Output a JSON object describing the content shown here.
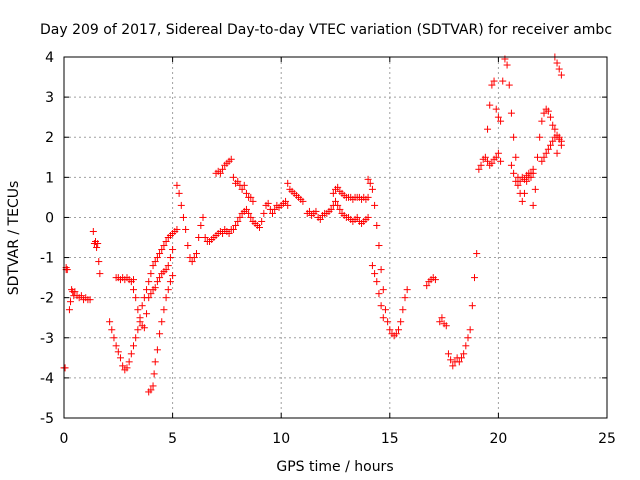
{
  "chart_data": {
    "type": "scatter",
    "title": "Day 209 of 2017, Sidereal Day-to-day VTEC variation (SDTVAR) for receiver ambc",
    "xlabel": "GPS time / hours",
    "ylabel": "SDTVAR / TECUs",
    "xlim": [
      0,
      25
    ],
    "ylim": [
      -5,
      4
    ],
    "xticks": [
      "0",
      "5",
      "10",
      "15",
      "20",
      "25"
    ],
    "yticks": [
      "-5",
      "-4",
      "-3",
      "-2",
      "-1",
      "0",
      "1",
      "2",
      "3",
      "4"
    ],
    "grid": true,
    "marker": "+",
    "color": "#ff0000",
    "series": [
      {
        "x": [
          0.0,
          0.05,
          0.1,
          0.1,
          0.15,
          0.25,
          0.3,
          0.35,
          0.4,
          0.45,
          0.5,
          0.6,
          0.7,
          0.8,
          0.9,
          1.0,
          1.1,
          1.2
        ],
        "y": [
          -3.75,
          -3.75,
          -1.3,
          -1.25,
          -1.3,
          -2.3,
          -2.1,
          -1.8,
          -1.85,
          -1.95,
          -1.85,
          -1.95,
          -2.0,
          -1.95,
          -2.05,
          -2.0,
          -2.05,
          -2.05
        ]
      },
      {
        "x": [
          1.35,
          1.4,
          1.45,
          1.5,
          1.55,
          1.6,
          1.65
        ],
        "y": [
          -0.35,
          -0.65,
          -0.6,
          -0.75,
          -0.65,
          -1.1,
          -1.4
        ]
      },
      {
        "x": [
          2.1,
          2.2,
          2.3,
          2.4,
          2.5,
          2.6,
          2.7,
          2.8,
          2.9,
          3.0,
          3.1,
          3.2,
          3.3,
          3.4,
          3.5,
          3.6,
          3.7,
          3.8,
          3.9,
          4.0,
          4.1,
          4.2,
          4.3,
          4.4,
          4.5,
          4.6,
          4.7,
          4.8,
          4.9,
          5.0,
          5.1,
          5.2
        ],
        "y": [
          -2.6,
          -2.8,
          -3.0,
          -3.2,
          -3.35,
          -3.5,
          -3.7,
          -3.8,
          -3.75,
          -3.6,
          -3.4,
          -3.2,
          -3.0,
          -2.8,
          -2.5,
          -2.2,
          -2.0,
          -1.8,
          -1.6,
          -1.4,
          -1.2,
          -1.1,
          -1.0,
          -0.9,
          -0.8,
          -0.7,
          -0.6,
          -0.5,
          -0.45,
          -0.4,
          -0.35,
          -0.3
        ]
      },
      {
        "x": [
          2.4,
          2.5,
          2.6,
          2.7,
          2.8,
          2.9,
          3.0,
          3.1,
          3.2
        ],
        "y": [
          -1.5,
          -1.5,
          -1.55,
          -1.5,
          -1.55,
          -1.5,
          -1.55,
          -1.6,
          -1.55
        ]
      },
      {
        "x": [
          3.2,
          3.3,
          3.4,
          3.5,
          3.6,
          3.7,
          3.8,
          3.9,
          4.0,
          4.1,
          4.2,
          4.3,
          4.4,
          4.5,
          4.6,
          4.7,
          4.8,
          4.9,
          5.0
        ],
        "y": [
          -1.8,
          -2.0,
          -2.3,
          -2.6,
          -2.7,
          -2.75,
          -2.4,
          -2.0,
          -1.9,
          -1.8,
          -1.75,
          -1.6,
          -1.5,
          -1.4,
          -1.35,
          -1.3,
          -1.2,
          -1.0,
          -0.8
        ]
      },
      {
        "x": [
          3.9,
          4.0,
          4.1,
          4.15,
          4.2,
          4.3,
          4.4,
          4.5,
          4.6,
          4.7,
          4.8,
          4.9,
          5.0
        ],
        "y": [
          -4.35,
          -4.3,
          -4.2,
          -3.9,
          -3.6,
          -3.3,
          -2.9,
          -2.6,
          -2.3,
          -2.0,
          -1.8,
          -1.6,
          -1.45
        ]
      },
      {
        "x": [
          5.2,
          5.3,
          5.4,
          5.5,
          5.6,
          5.7,
          5.8,
          5.9,
          6.0,
          6.1,
          6.2,
          6.3,
          6.4,
          6.5,
          6.6,
          6.7,
          6.8,
          6.9,
          7.0,
          7.1,
          7.2,
          7.3,
          7.4,
          7.5,
          7.6,
          7.7
        ],
        "y": [
          0.8,
          0.6,
          0.3,
          0.0,
          -0.3,
          -0.7,
          -1.0,
          -1.1,
          -1.0,
          -0.9,
          -0.5,
          -0.2,
          0.0,
          -0.5,
          -0.6,
          -0.6,
          -0.55,
          -0.5,
          -0.45,
          -0.4,
          -0.35,
          -0.4,
          -0.3,
          -0.35,
          -0.4,
          -0.3
        ]
      },
      {
        "x": [
          7.0,
          7.1,
          7.2,
          7.3,
          7.4,
          7.5,
          7.6,
          7.7,
          7.8,
          7.9,
          8.0,
          8.1,
          8.2,
          8.3,
          8.4,
          8.5,
          8.6,
          8.7
        ],
        "y": [
          1.1,
          1.15,
          1.1,
          1.2,
          1.3,
          1.35,
          1.4,
          1.45,
          1.0,
          0.85,
          0.9,
          0.8,
          0.7,
          0.8,
          0.6,
          0.5,
          0.5,
          0.4
        ]
      },
      {
        "x": [
          7.8,
          7.9,
          8.0,
          8.1,
          8.2,
          8.3,
          8.4,
          8.5,
          8.6,
          8.7,
          8.8,
          8.9,
          9.0,
          9.1,
          9.2,
          9.3,
          9.4,
          9.5,
          9.6,
          9.7,
          9.8,
          9.9,
          10.0,
          10.1,
          10.2,
          10.3
        ],
        "y": [
          -0.3,
          -0.2,
          -0.1,
          0.0,
          0.1,
          0.15,
          0.2,
          0.1,
          0.0,
          -0.1,
          -0.15,
          -0.2,
          -0.25,
          -0.1,
          0.1,
          0.3,
          0.35,
          0.2,
          0.1,
          0.2,
          0.3,
          0.25,
          0.3,
          0.35,
          0.4,
          0.3
        ]
      },
      {
        "x": [
          10.3,
          10.4,
          10.5,
          10.6,
          10.7,
          10.8,
          10.9,
          11.0
        ],
        "y": [
          0.85,
          0.7,
          0.65,
          0.6,
          0.55,
          0.5,
          0.45,
          0.4
        ]
      },
      {
        "x": [
          11.2,
          11.3,
          11.4,
          11.5,
          11.6,
          11.7,
          11.8,
          11.9,
          12.0,
          12.1,
          12.2,
          12.3,
          12.4,
          12.5,
          12.6,
          12.7,
          12.8,
          12.9,
          13.0,
          13.1,
          13.2,
          13.3,
          13.4,
          13.5,
          13.6,
          13.7,
          13.8,
          13.9,
          14.0
        ],
        "y": [
          0.1,
          0.15,
          0.05,
          0.1,
          0.15,
          0.0,
          -0.05,
          0.05,
          0.1,
          0.1,
          0.15,
          0.2,
          0.3,
          0.4,
          0.3,
          0.2,
          0.1,
          0.05,
          0.0,
          0.0,
          -0.05,
          -0.1,
          -0.05,
          0.0,
          -0.1,
          -0.15,
          -0.1,
          -0.05,
          0.0
        ]
      },
      {
        "x": [
          12.4,
          12.5,
          12.6,
          12.7,
          12.8,
          12.9,
          13.0,
          13.1,
          13.2,
          13.3,
          13.4,
          13.5,
          13.6,
          13.7,
          13.8,
          13.9,
          14.0
        ],
        "y": [
          0.6,
          0.7,
          0.75,
          0.65,
          0.6,
          0.55,
          0.5,
          0.5,
          0.5,
          0.45,
          0.5,
          0.5,
          0.5,
          0.45,
          0.5,
          0.45,
          0.5
        ]
      },
      {
        "x": [
          14.0,
          14.1,
          14.2,
          14.3,
          14.4,
          14.5,
          14.6,
          14.7,
          14.8,
          14.9,
          15.0,
          15.1,
          15.2,
          15.3,
          15.4,
          15.5,
          15.6,
          15.7,
          15.8
        ],
        "y": [
          0.95,
          0.85,
          0.7,
          0.3,
          -0.2,
          -0.7,
          -1.3,
          -1.8,
          -2.3,
          -2.6,
          -2.8,
          -2.9,
          -2.95,
          -2.9,
          -2.8,
          -2.6,
          -2.3,
          -2.0,
          -1.8
        ]
      },
      {
        "x": [
          14.2,
          14.3,
          14.4,
          14.5,
          14.6,
          14.7
        ],
        "y": [
          -1.2,
          -1.4,
          -1.6,
          -1.9,
          -2.2,
          -2.5
        ]
      },
      {
        "x": [
          16.7,
          16.8,
          16.9,
          17.0,
          17.1
        ],
        "y": [
          -1.7,
          -1.6,
          -1.55,
          -1.5,
          -1.55
        ]
      },
      {
        "x": [
          17.3,
          17.4,
          17.5,
          17.6,
          17.7,
          17.8,
          17.9,
          18.0,
          18.1,
          18.2,
          18.3,
          18.4,
          18.5,
          18.6,
          18.7,
          18.8,
          18.9,
          19.0
        ],
        "y": [
          -2.6,
          -2.5,
          -2.65,
          -2.7,
          -3.4,
          -3.55,
          -3.7,
          -3.6,
          -3.5,
          -3.6,
          -3.5,
          -3.4,
          -3.2,
          -3.0,
          -2.8,
          -2.2,
          -1.5,
          -0.9
        ]
      },
      {
        "x": [
          19.1,
          19.2,
          19.3,
          19.4,
          19.5,
          19.6,
          19.7,
          19.8,
          19.9,
          20.0,
          20.1
        ],
        "y": [
          1.2,
          1.3,
          1.45,
          1.5,
          1.4,
          1.3,
          1.35,
          1.45,
          1.5,
          1.6,
          1.4
        ]
      },
      {
        "x": [
          19.5,
          19.6,
          19.7,
          19.8,
          19.9,
          20.0
        ],
        "y": [
          2.2,
          2.8,
          3.3,
          3.4,
          2.7,
          2.5
        ]
      },
      {
        "x": [
          20.1,
          20.2,
          20.3,
          20.4,
          20.5,
          20.6,
          20.7,
          20.8,
          20.9,
          21.0,
          21.1,
          21.2,
          21.3,
          21.4,
          21.5,
          21.6
        ],
        "y": [
          2.4,
          3.4,
          3.95,
          3.8,
          3.3,
          2.6,
          2.0,
          1.5,
          1.0,
          0.6,
          0.4,
          0.6,
          0.9,
          1.0,
          1.1,
          1.2
        ]
      },
      {
        "x": [
          20.6,
          20.7,
          20.8,
          20.9,
          21.0,
          21.1,
          21.2,
          21.3,
          21.4,
          21.5,
          21.6
        ],
        "y": [
          1.3,
          1.1,
          0.9,
          0.8,
          0.9,
          1.0,
          0.95,
          1.05,
          1.1,
          1.0,
          1.1
        ]
      },
      {
        "x": [
          21.6,
          21.7,
          21.8,
          21.9,
          22.0,
          22.1,
          22.2,
          22.3,
          22.4,
          22.5,
          22.6,
          22.7,
          22.8,
          22.9
        ],
        "y": [
          0.3,
          0.7,
          1.5,
          2.0,
          2.4,
          2.6,
          2.7,
          2.65,
          2.5,
          2.3,
          2.2,
          2.05,
          1.95,
          1.9
        ]
      },
      {
        "x": [
          22.0,
          22.1,
          22.2,
          22.3,
          22.4,
          22.5,
          22.6,
          22.7,
          22.8,
          22.9
        ],
        "y": [
          1.4,
          1.5,
          1.6,
          1.7,
          1.8,
          1.9,
          2.0,
          1.6,
          2.0,
          1.8
        ]
      },
      {
        "x": [
          22.6,
          22.7,
          22.8,
          22.9
        ],
        "y": [
          4.0,
          3.85,
          3.7,
          3.55
        ]
      }
    ]
  }
}
